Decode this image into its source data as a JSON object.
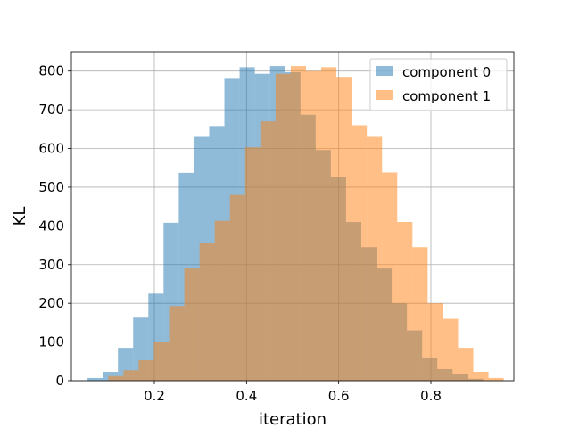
{
  "chart_data": {
    "type": "bar",
    "title": "",
    "xlabel": "iteration",
    "ylabel": "KL",
    "xlim": [
      0.02,
      0.98
    ],
    "ylim": [
      0,
      850
    ],
    "xticks": [
      0.2,
      0.4,
      0.6,
      0.8
    ],
    "xtick_labels": [
      "0.2",
      "0.4",
      "0.6",
      "0.8"
    ],
    "yticks": [
      0,
      100,
      200,
      300,
      400,
      500,
      600,
      700,
      800
    ],
    "ytick_labels": [
      "0",
      "100",
      "200",
      "300",
      "400",
      "500",
      "600",
      "700",
      "800"
    ],
    "grid": true,
    "legend_position": "top-right",
    "series": [
      {
        "name": "component 0",
        "color": "#1f77b4",
        "opacity": 0.5,
        "bin_edges": [
          0.055,
          0.088,
          0.121,
          0.154,
          0.187,
          0.22,
          0.253,
          0.286,
          0.319,
          0.352,
          0.385,
          0.418,
          0.451,
          0.484,
          0.517,
          0.55,
          0.583,
          0.616,
          0.649,
          0.682,
          0.715,
          0.748,
          0.781,
          0.814,
          0.847,
          0.88,
          0.913
        ],
        "values": [
          7,
          23,
          85,
          163,
          225,
          408,
          537,
          630,
          658,
          780,
          810,
          793,
          813,
          797,
          687,
          596,
          527,
          410,
          345,
          290,
          200,
          130,
          60,
          30,
          17,
          5
        ]
      },
      {
        "name": "component 1",
        "color": "#ff7f0e",
        "opacity": 0.5,
        "bin_edges": [
          0.1,
          0.133,
          0.166,
          0.199,
          0.232,
          0.265,
          0.298,
          0.331,
          0.364,
          0.397,
          0.43,
          0.463,
          0.496,
          0.529,
          0.562,
          0.595,
          0.628,
          0.661,
          0.694,
          0.727,
          0.76,
          0.793,
          0.826,
          0.859,
          0.892,
          0.925,
          0.958
        ],
        "values": [
          12,
          27,
          53,
          100,
          193,
          290,
          355,
          413,
          480,
          603,
          670,
          793,
          813,
          800,
          810,
          785,
          660,
          630,
          538,
          410,
          345,
          200,
          160,
          85,
          23,
          7
        ]
      }
    ]
  }
}
